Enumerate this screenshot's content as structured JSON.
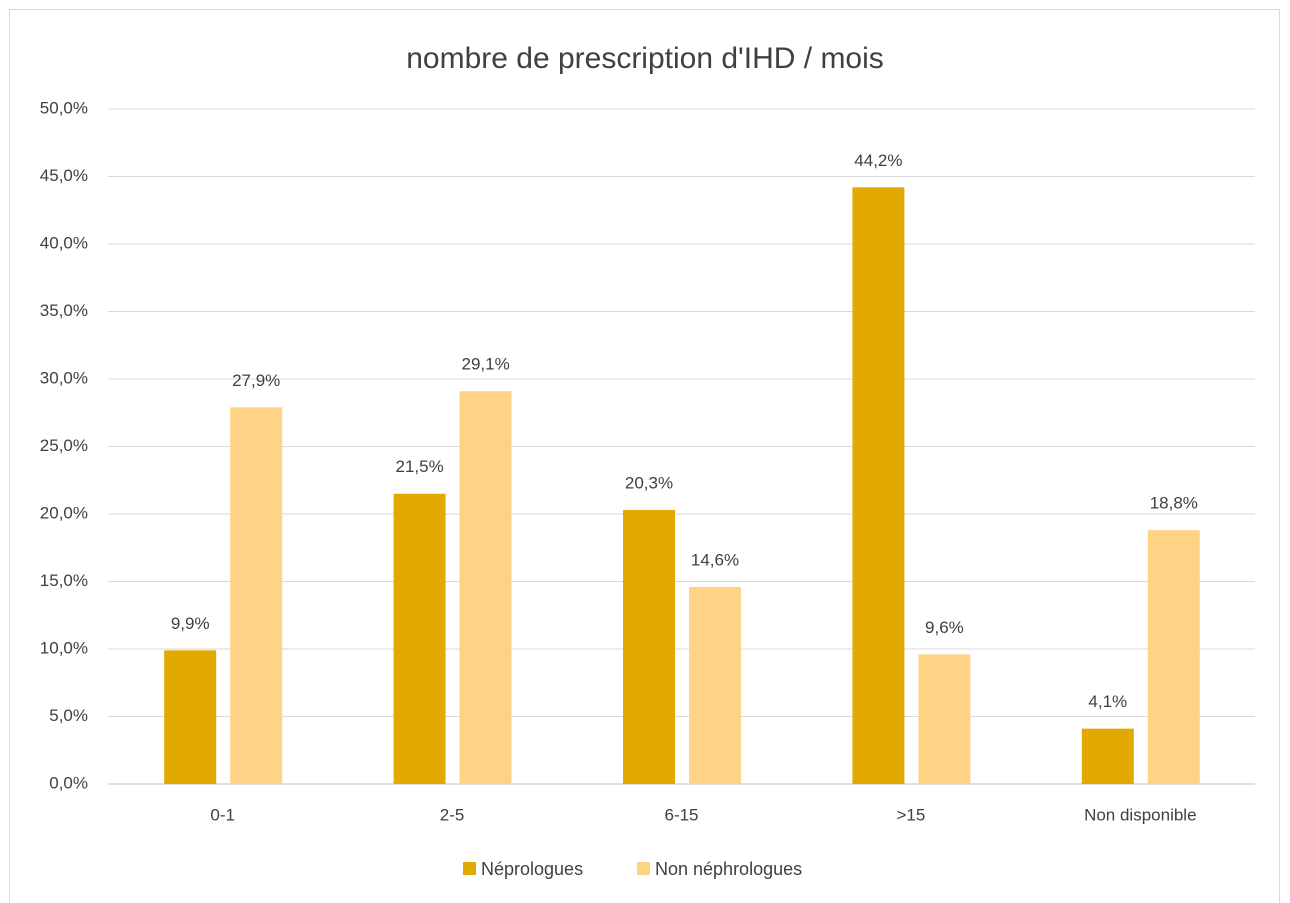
{
  "chart_data": {
    "type": "bar",
    "title": "nombre de prescription d'IHD / mois",
    "categories": [
      "0-1",
      "2-5",
      "6-15",
      ">15",
      "Non disponible"
    ],
    "series": [
      {
        "name": "Néprologues",
        "color": "#e2aa00",
        "values": [
          9.9,
          21.5,
          20.3,
          44.2,
          4.1
        ],
        "value_labels": [
          "9,9%",
          "21,5%",
          "20,3%",
          "44,2%",
          "4,1%"
        ]
      },
      {
        "name": "Non néphrologues",
        "color": "#ffd386",
        "values": [
          27.9,
          29.1,
          14.6,
          9.6,
          18.8
        ],
        "value_labels": [
          "27,9%",
          "29,1%",
          "14,6%",
          "9,6%",
          "18,8%"
        ]
      }
    ],
    "ylim": [
      0,
      50
    ],
    "yticks": [
      {
        "value": 0,
        "label": "0,0%"
      },
      {
        "value": 5,
        "label": "5,0%"
      },
      {
        "value": 10,
        "label": "10,0%"
      },
      {
        "value": 15,
        "label": "15,0%"
      },
      {
        "value": 20,
        "label": "20,0%"
      },
      {
        "value": 25,
        "label": "25,0%"
      },
      {
        "value": 30,
        "label": "30,0%"
      },
      {
        "value": 35,
        "label": "35,0%"
      },
      {
        "value": 40,
        "label": "40,0%"
      },
      {
        "value": 45,
        "label": "45,0%"
      },
      {
        "value": 50,
        "label": "50,0%"
      }
    ],
    "grid": true,
    "legend": "bottom"
  }
}
